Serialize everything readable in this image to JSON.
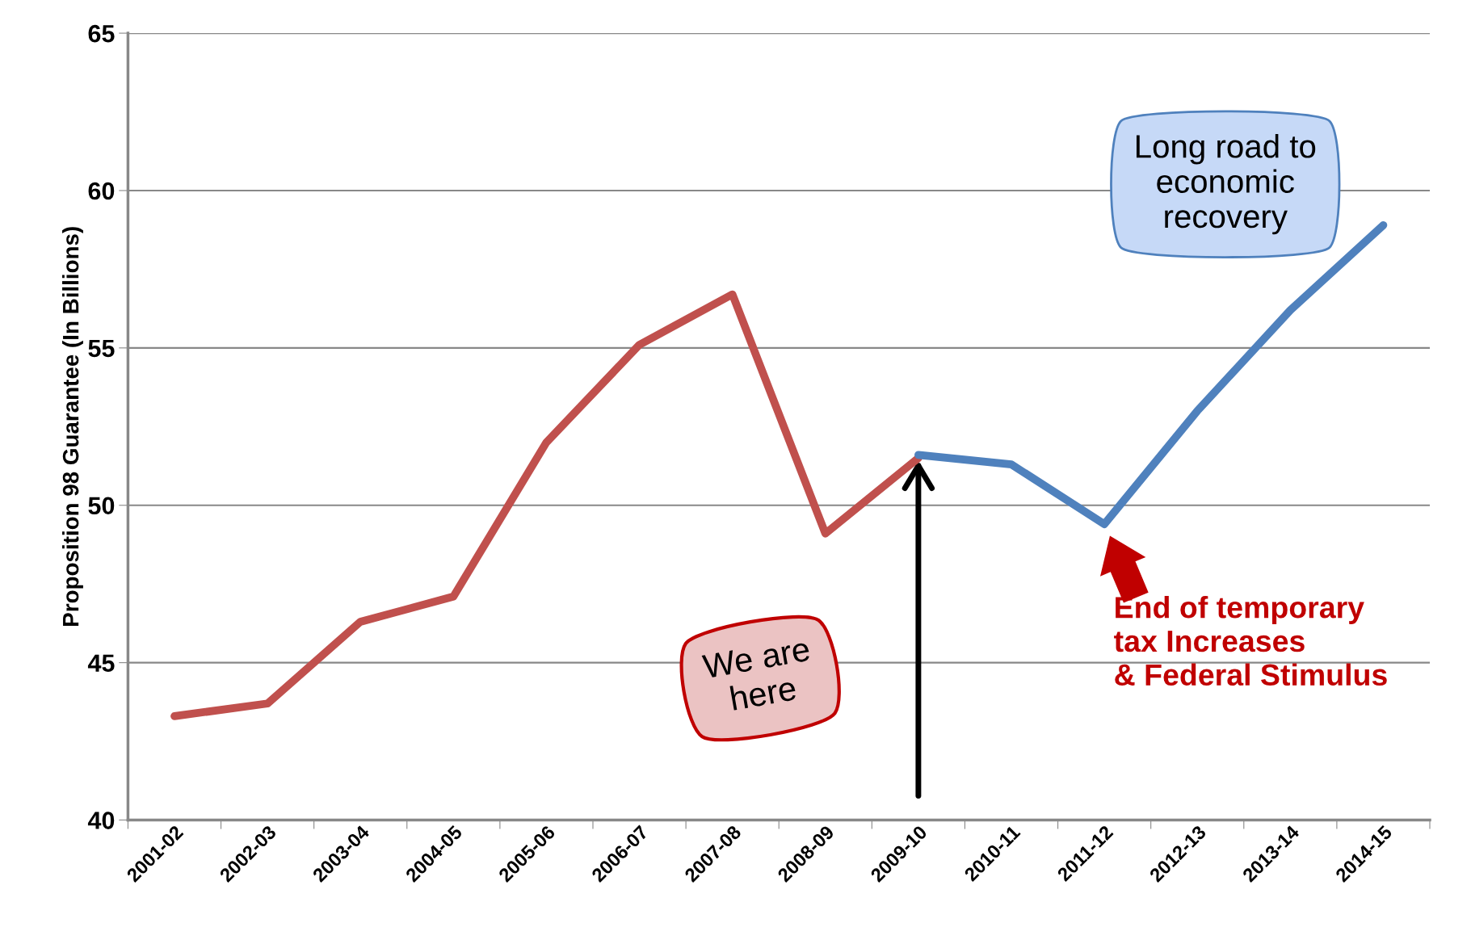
{
  "chart_data": {
    "type": "line",
    "ylabel": "Proposition 98 Guarantee (In Billions)",
    "categories": [
      "2001-02",
      "2002-03",
      "2003-04",
      "2004-05",
      "2005-06",
      "2006-07",
      "2007-08",
      "2008-09",
      "2009-10",
      "2010-11",
      "2011-12",
      "2012-13",
      "2013-14",
      "2014-15"
    ],
    "series": [
      {
        "color": "#c0504d",
        "values": [
          43.3,
          43.7,
          46.3,
          47.1,
          52.0,
          55.1,
          56.7,
          49.1,
          51.5,
          null,
          null,
          null,
          null,
          null
        ]
      },
      {
        "color": "#4f81bd",
        "values": [
          null,
          null,
          null,
          null,
          null,
          null,
          null,
          null,
          51.6,
          51.3,
          49.4,
          53.0,
          56.2,
          58.9
        ]
      }
    ],
    "ylim": [
      40,
      65
    ],
    "yticks": [
      40,
      45,
      50,
      55,
      60,
      65
    ],
    "grid": "y",
    "line_style": "solid",
    "marker": "none",
    "annotations": [
      "We are here",
      "Long road to economic recovery",
      "End of temporary tax Increases & Federal Stimulus"
    ]
  }
}
